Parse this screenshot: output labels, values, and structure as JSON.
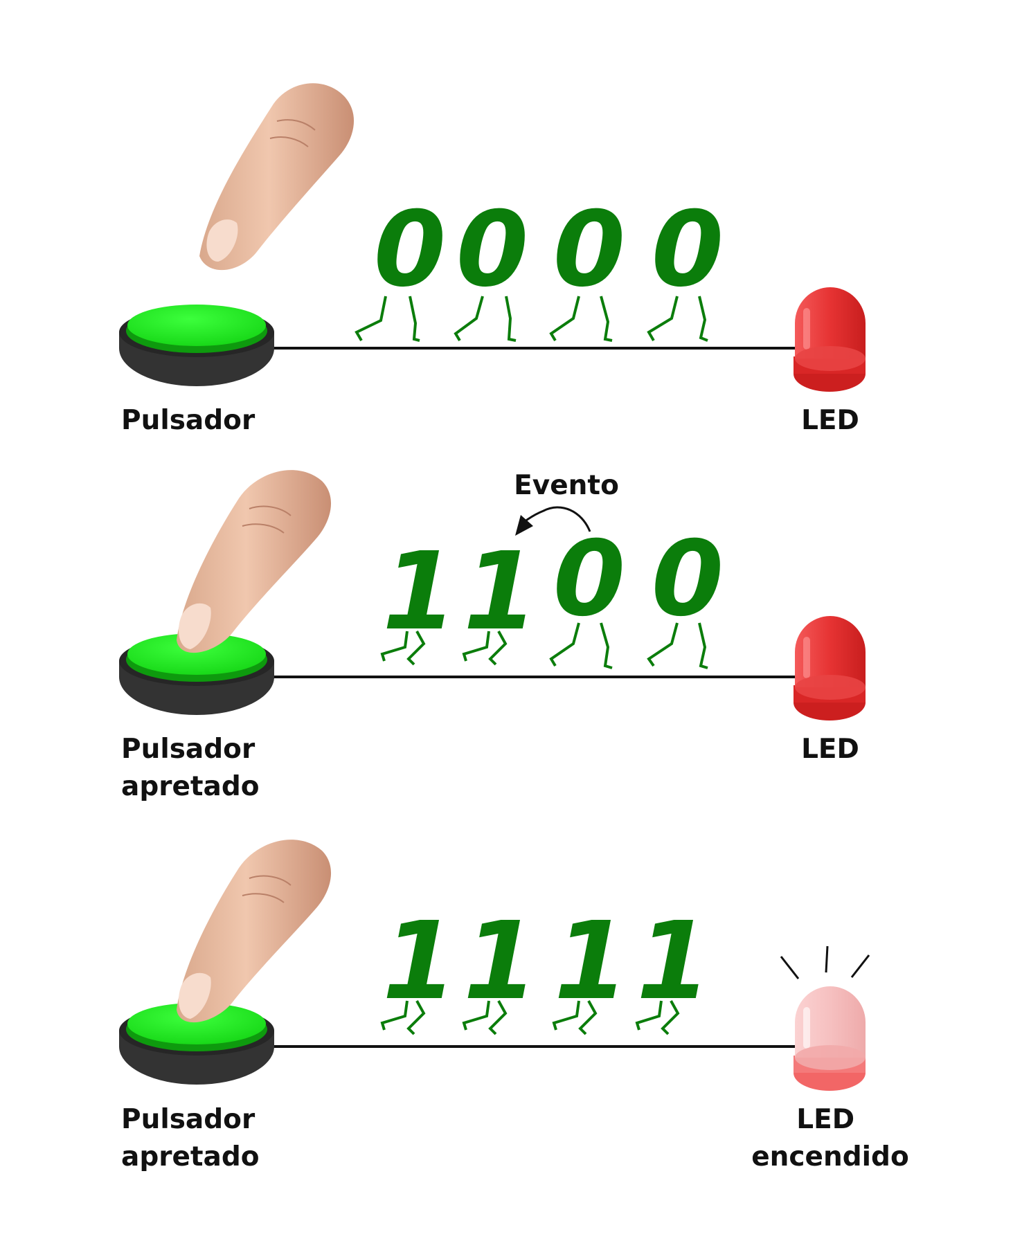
{
  "colors": {
    "digit": "#0b7d0b",
    "button_top": "#22ee22",
    "button_base": "#333333",
    "wire": "#111111",
    "led_off": "#e42c2c",
    "led_on": "#f6bcbc"
  },
  "panels": [
    {
      "bits": [
        "0",
        "0",
        "0",
        "0"
      ],
      "button_label": [
        "Pulsador"
      ],
      "led_label": [
        "LED"
      ],
      "button_pressed": false,
      "led_lit": false,
      "event_label": null
    },
    {
      "bits": [
        "1",
        "1",
        "0",
        "0"
      ],
      "button_label": [
        "Pulsador",
        "apretado"
      ],
      "led_label": [
        "LED"
      ],
      "button_pressed": true,
      "led_lit": false,
      "event_label": "Evento"
    },
    {
      "bits": [
        "1",
        "1",
        "1",
        "1"
      ],
      "button_label": [
        "Pulsador",
        "apretado"
      ],
      "led_label": [
        "LED",
        "encendido"
      ],
      "button_pressed": true,
      "led_lit": true,
      "event_label": null
    }
  ]
}
